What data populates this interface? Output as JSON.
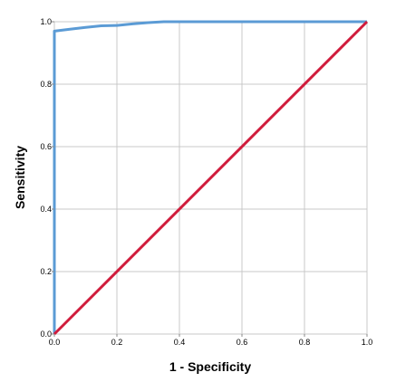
{
  "chart_data": {
    "type": "line",
    "title": "",
    "xlabel": "1 - Specificity",
    "ylabel": "Sensitivity",
    "xlim": [
      0,
      1
    ],
    "ylim": [
      0,
      1
    ],
    "grid": true,
    "x_ticks": [
      "0.0",
      "0.2",
      "0.4",
      "0.6",
      "0.8",
      "1.0"
    ],
    "y_ticks": [
      "0.0",
      "0.2",
      "0.4",
      "0.6",
      "0.8",
      "1.0"
    ],
    "series": [
      {
        "color": "#5b9bd5",
        "x": [
          0,
          0,
          0.05,
          0.1,
          0.15,
          0.2,
          0.25,
          0.3,
          0.35,
          1.0
        ],
        "y": [
          0,
          0.97,
          0.976,
          0.982,
          0.987,
          0.988,
          0.993,
          0.997,
          1.0,
          1.0
        ]
      },
      {
        "color": "#d01c3c",
        "x": [
          0,
          1
        ],
        "y": [
          0,
          1
        ]
      }
    ]
  }
}
